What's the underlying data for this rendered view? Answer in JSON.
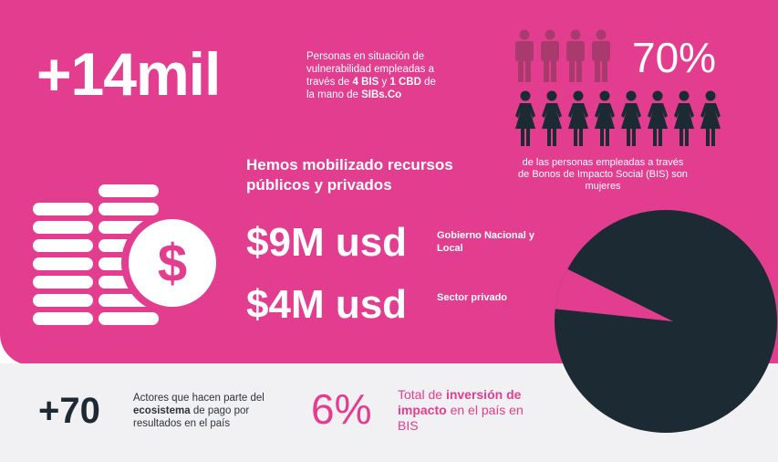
{
  "beneficiaries": {
    "value": "+14mil",
    "desc_1": "Personas en situación de vulnerabilidad empleadas a través de ",
    "desc_bis": "4 BIS",
    "desc_2": " y ",
    "desc_cbd": "1 CBD",
    "desc_3": " de la mano de ",
    "desc_org": "SIBs.Co"
  },
  "women": {
    "value": "70%",
    "desc": "de las personas empleadas a través de Bonos de Impacto Social (BIS) son mujeres",
    "icon_men": "man-icon",
    "icon_women": "woman-icon",
    "men_count": 4,
    "women_count": 8
  },
  "funding": {
    "title": "Hemos mobilizado recursos públicos y privados",
    "public_amount": "$9M usd",
    "public_label": "Gobierno Nacional y Local",
    "private_amount": "$4M usd",
    "private_label": "Sector privado",
    "coin_symbol": "$"
  },
  "actors": {
    "value": "+70",
    "desc_1": "Actores que hacen parte del ",
    "desc_bold": "ecosistema",
    "desc_2": " de pago por resultados en el país"
  },
  "investment": {
    "value": "6%",
    "desc_1": "Total de ",
    "desc_bold": "inversión de impacto",
    "desc_2": " en el país en BIS",
    "fraction": 0.06
  },
  "colors": {
    "pink": "#e23d8f",
    "dark": "#1b2a33",
    "light_gray": "#f1f1f3",
    "muted_pink": "#a83a6d"
  }
}
